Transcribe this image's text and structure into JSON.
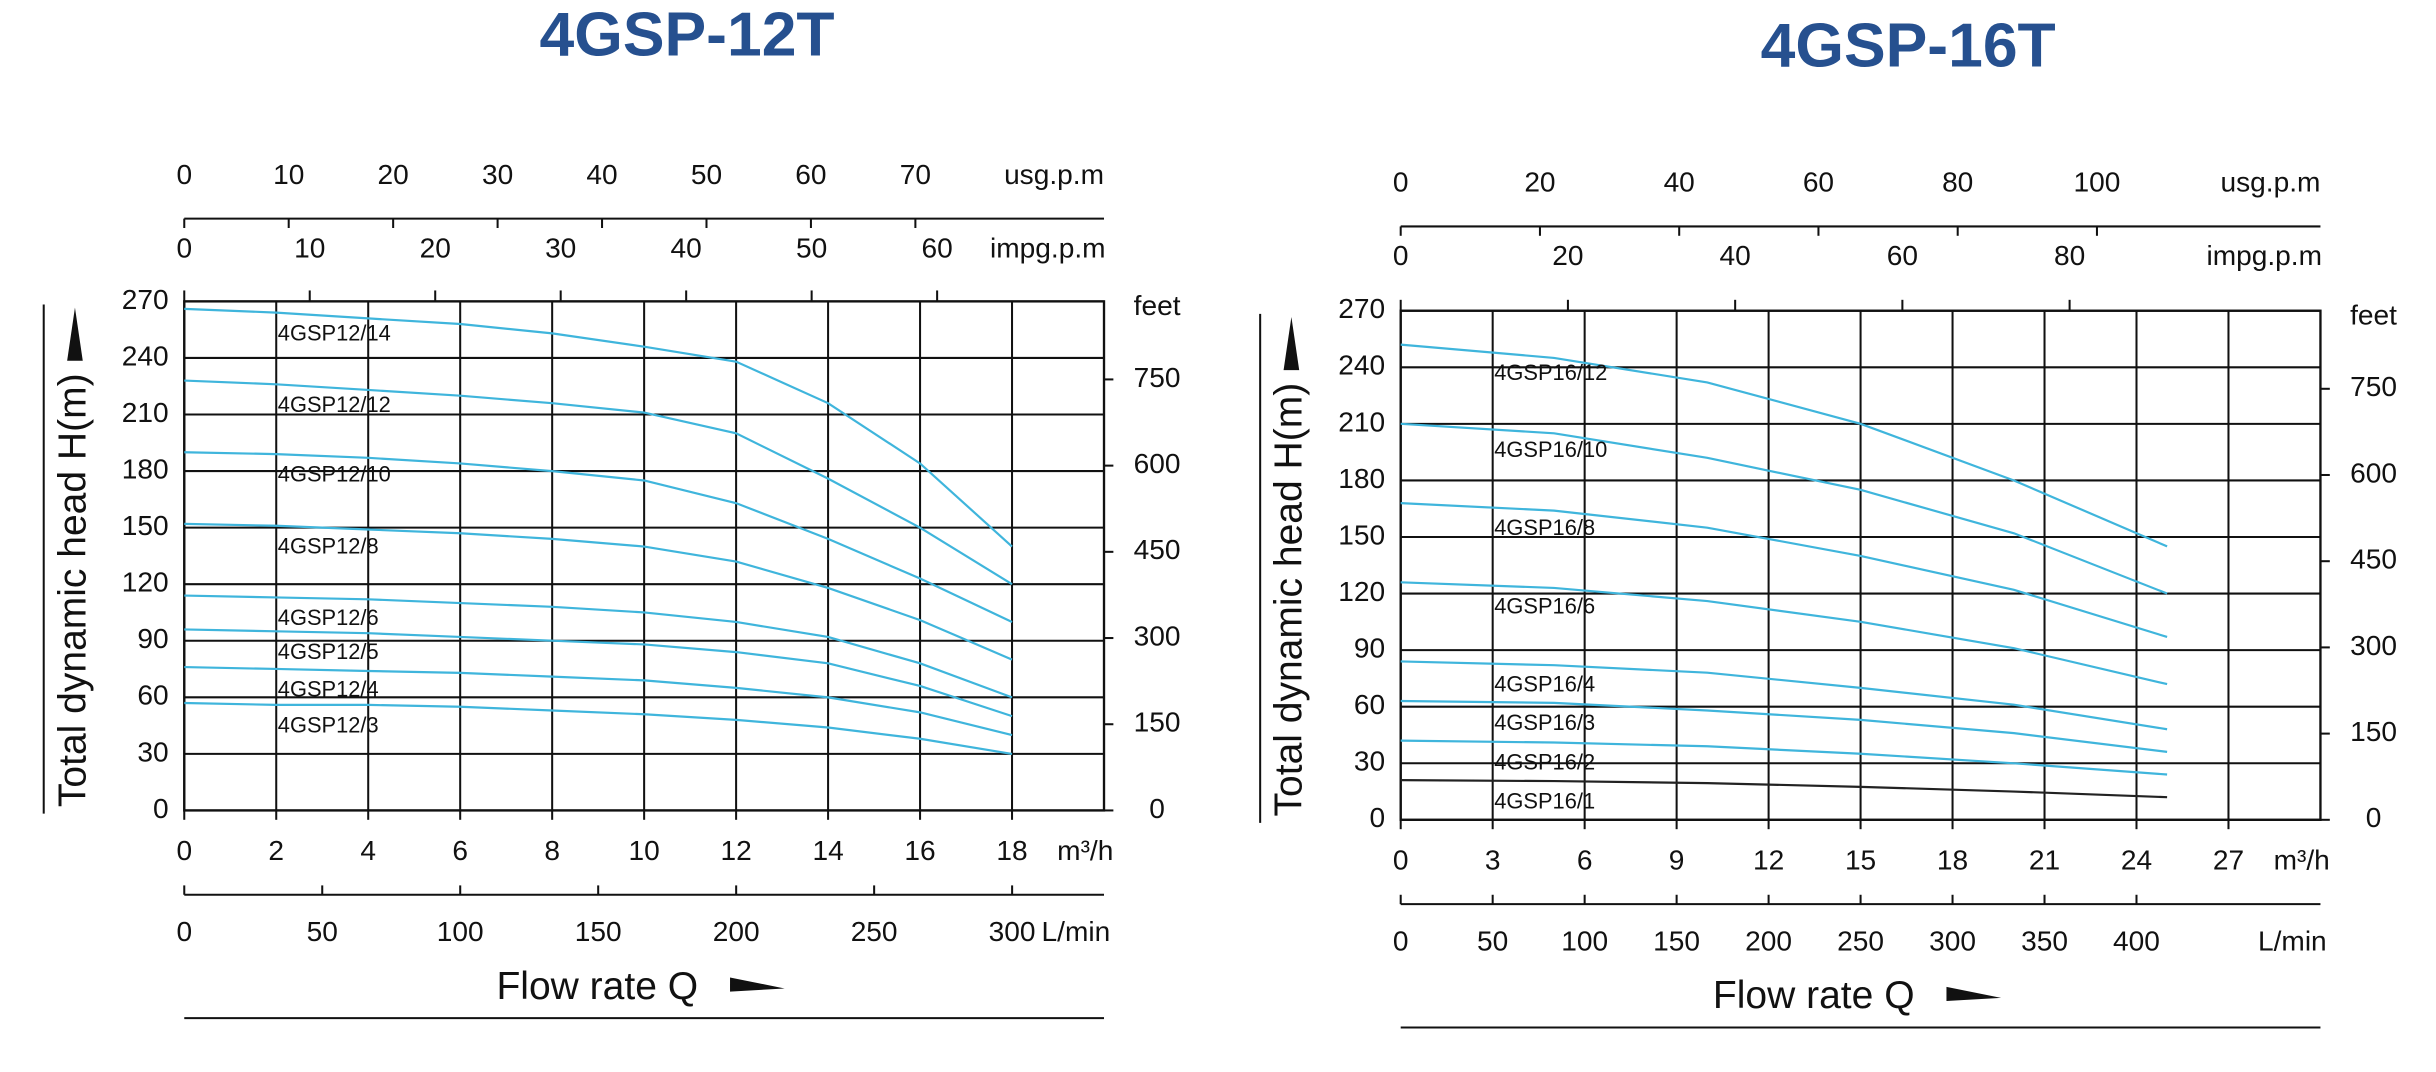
{
  "chart_data": [
    {
      "type": "line",
      "title": "4GSP-12T",
      "x_label": "Flow rate Q",
      "x_unit": "m³/h",
      "y_label": "Total dynamic head H(m)",
      "y2_label": "feet",
      "x": [
        0,
        2,
        4,
        6,
        8,
        10,
        12,
        14,
        16,
        18
      ],
      "xlim": [
        0,
        20
      ],
      "xticks": [
        0,
        2,
        4,
        6,
        8,
        10,
        12,
        14,
        16,
        18
      ],
      "ylim": [
        0,
        270
      ],
      "yticks": [
        0,
        30,
        60,
        90,
        120,
        150,
        180,
        210,
        240,
        270
      ],
      "y2lim": [
        0,
        885.8
      ],
      "y2ticks": [
        0,
        150,
        300,
        450,
        600,
        750
      ],
      "usg_axis": {
        "label": "usg.p.m",
        "lim": [
          0,
          88.06
        ],
        "ticks": [
          0,
          10,
          20,
          30,
          40,
          50,
          60,
          70
        ]
      },
      "impg_axis": {
        "label": "impg.p.m",
        "lim": [
          0,
          73.3
        ],
        "ticks": [
          0,
          10,
          20,
          30,
          40,
          50,
          60
        ]
      },
      "lmin_axis": {
        "label": "L/min",
        "lim": [
          0,
          333.3
        ],
        "ticks": [
          0,
          50,
          100,
          150,
          200,
          250,
          300
        ]
      },
      "grid": true,
      "label_at": 2,
      "series": [
        {
          "name": "4GSP12/14",
          "color": "#3fb5dc",
          "values": [
            266,
            264,
            261,
            258,
            253,
            246,
            238,
            216,
            184,
            140
          ]
        },
        {
          "name": "4GSP12/12",
          "color": "#3fb5dc",
          "values": [
            228,
            226,
            223,
            220,
            216,
            211,
            200,
            176,
            150,
            120
          ]
        },
        {
          "name": "4GSP12/10",
          "color": "#3fb5dc",
          "values": [
            190,
            189,
            187,
            184,
            180,
            175,
            163,
            144,
            123,
            100
          ]
        },
        {
          "name": "4GSP12/8",
          "color": "#3fb5dc",
          "values": [
            152,
            151,
            149,
            147,
            144,
            140,
            132,
            118,
            101,
            80
          ]
        },
        {
          "name": "4GSP12/6",
          "color": "#3fb5dc",
          "values": [
            114,
            113,
            112,
            110,
            108,
            105,
            100,
            92,
            78,
            60
          ]
        },
        {
          "name": "4GSP12/5",
          "color": "#3fb5dc",
          "values": [
            96,
            95,
            94,
            92,
            90,
            88,
            84,
            78,
            66,
            50
          ]
        },
        {
          "name": "4GSP12/4",
          "color": "#3fb5dc",
          "values": [
            76,
            75,
            74,
            73,
            71,
            69,
            65,
            60,
            52,
            40
          ]
        },
        {
          "name": "4GSP12/3",
          "color": "#3fb5dc",
          "values": [
            57,
            56,
            56,
            55,
            53,
            51,
            48,
            44,
            38,
            30
          ]
        }
      ]
    },
    {
      "type": "line",
      "title": "4GSP-16T",
      "x_label": "Flow rate Q",
      "x_unit": "m³/h",
      "y_label": "Total dynamic head H(m)",
      "y2_label": "feet",
      "x": [
        0,
        5,
        10,
        15,
        20,
        25
      ],
      "xlim": [
        0,
        30
      ],
      "xticks": [
        0,
        3,
        6,
        9,
        12,
        15,
        18,
        21,
        24,
        27
      ],
      "ylim": [
        0,
        270
      ],
      "yticks": [
        0,
        30,
        60,
        90,
        120,
        150,
        180,
        210,
        240,
        270
      ],
      "y2lim": [
        0,
        885.8
      ],
      "y2ticks": [
        0,
        150,
        300,
        450,
        600,
        750
      ],
      "usg_axis": {
        "label": "usg.p.m",
        "lim": [
          0,
          132.1
        ],
        "ticks": [
          0,
          20,
          40,
          60,
          80,
          100
        ]
      },
      "impg_axis": {
        "label": "impg.p.m",
        "lim": [
          0,
          110.0
        ],
        "ticks": [
          0,
          20,
          40,
          60,
          80
        ]
      },
      "lmin_axis": {
        "label": "L/min",
        "lim": [
          0,
          500
        ],
        "ticks": [
          0,
          50,
          100,
          150,
          200,
          250,
          300,
          350,
          400
        ]
      },
      "grid": true,
      "label_at": 3,
      "series": [
        {
          "name": "4GSP16/12",
          "color": "#3fb5dc",
          "values": [
            252,
            245,
            232,
            210,
            180,
            145
          ]
        },
        {
          "name": "4GSP16/10",
          "color": "#3fb5dc",
          "values": [
            210,
            205,
            192,
            175,
            152,
            120
          ]
        },
        {
          "name": "4GSP16/8",
          "color": "#3fb5dc",
          "values": [
            168,
            164,
            155,
            140,
            122,
            97
          ]
        },
        {
          "name": "4GSP16/6",
          "color": "#3fb5dc",
          "values": [
            126,
            123,
            116,
            105,
            91,
            72
          ]
        },
        {
          "name": "4GSP16/4",
          "color": "#3fb5dc",
          "values": [
            84,
            82,
            78,
            70,
            61,
            48
          ]
        },
        {
          "name": "4GSP16/3",
          "color": "#3fb5dc",
          "values": [
            63,
            62,
            58,
            53,
            46,
            36
          ]
        },
        {
          "name": "4GSP16/2",
          "color": "#3fb5dc",
          "values": [
            42,
            41,
            39,
            35,
            30,
            24
          ]
        },
        {
          "name": "4GSP16/1",
          "color": "#222222",
          "values": [
            21,
            20.5,
            19.5,
            17.5,
            15,
            12
          ]
        }
      ]
    }
  ]
}
